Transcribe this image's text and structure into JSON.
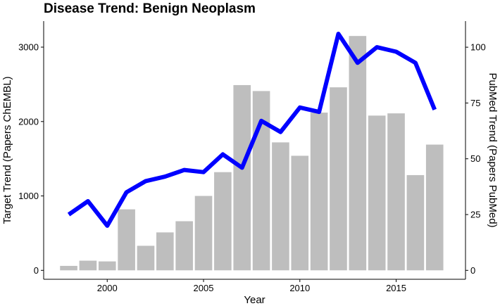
{
  "chart_data": {
    "type": "bar",
    "title": "Disease Trend: Benign Neoplasm",
    "xlabel": "Year",
    "ylabel": "Target  Trend (Papers ChEMBL)",
    "y2label": "PubMed Trend (Papers PubMed)",
    "xlim": [
      1996.7,
      2018.6
    ],
    "ylim": [
      -120,
      3350
    ],
    "y2lim": [
      -4,
      111.7
    ],
    "x_ticks": [
      2000,
      2005,
      2010,
      2015
    ],
    "y_ticks": [
      0,
      1000,
      2000,
      3000
    ],
    "y2_ticks": [
      0,
      25,
      50,
      75,
      100
    ],
    "grid": false,
    "bar_color": "#bebebe",
    "line_color": "#0000ff",
    "x": [
      1998,
      1999,
      2000,
      2001,
      2002,
      2003,
      2004,
      2005,
      2006,
      2007,
      2008,
      2009,
      2010,
      2011,
      2012,
      2013,
      2014,
      2015,
      2016,
      2017
    ],
    "series": [
      {
        "name": "Papers ChEMBL",
        "axis": "left",
        "type": "bar",
        "values": [
          60,
          130,
          120,
          820,
          330,
          510,
          660,
          1000,
          1320,
          2490,
          2410,
          1720,
          1540,
          2120,
          2460,
          3150,
          2080,
          2110,
          1280,
          1690
        ]
      },
      {
        "name": "Papers PubMed",
        "axis": "right",
        "type": "line",
        "values": [
          25,
          31,
          20,
          35,
          40,
          42,
          45,
          44,
          52,
          46,
          67,
          62,
          73,
          71,
          106,
          93,
          100,
          98,
          93,
          72
        ]
      }
    ]
  }
}
